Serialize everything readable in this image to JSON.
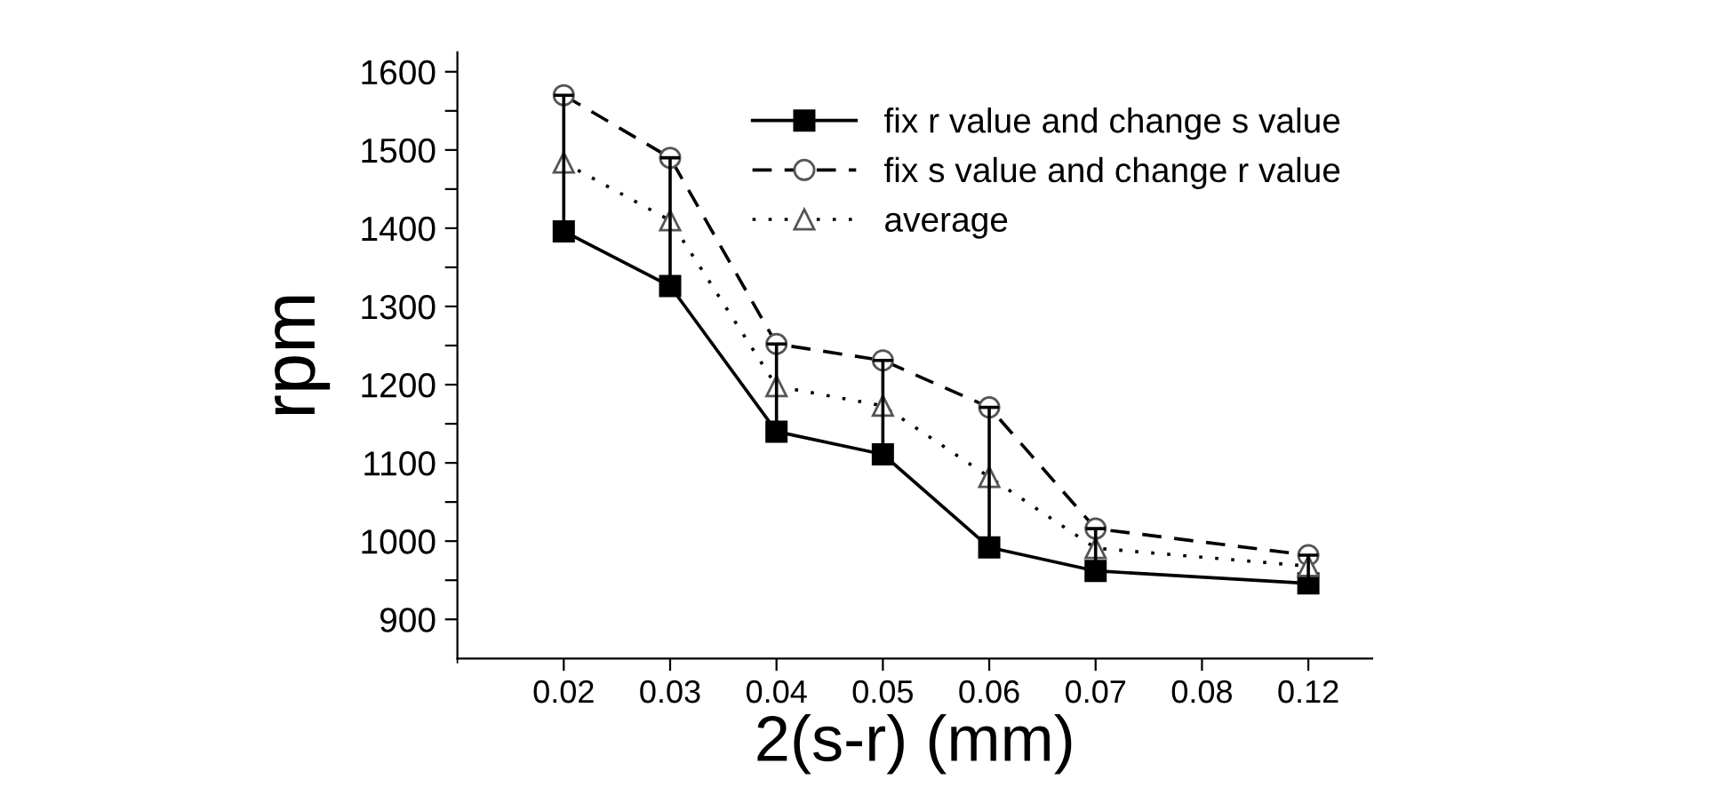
{
  "chart_data": {
    "type": "line",
    "xlabel": "2(s-r) (mm)",
    "ylabel": "rpm",
    "categories": [
      "0.02",
      "0.03",
      "0.04",
      "0.05",
      "0.06",
      "0.07",
      "0.08",
      "0.12"
    ],
    "ylim": [
      850,
      1625
    ],
    "yticks": [
      900,
      {
        "value": 950,
        "label": null
      },
      1000,
      {
        "value": 1050,
        "label": null
      },
      1100,
      {
        "value": 1150,
        "label": null
      },
      1200,
      {
        "value": 1250,
        "label": null
      },
      1300,
      {
        "value": 1350,
        "label": null
      },
      1400,
      {
        "value": 1450,
        "label": null
      },
      1500,
      {
        "value": 1550,
        "label": null
      },
      1600
    ],
    "series": [
      {
        "name": "fix r value and change s value",
        "color": "#000000",
        "marker": "square",
        "line_style": "solid",
        "values": [
          1396,
          1326,
          1140,
          1111,
          992,
          962,
          null,
          946
        ],
        "errors": [
          [
            1396,
            1570
          ],
          [
            1326,
            1490
          ],
          [
            1140,
            1252
          ],
          [
            1111,
            1231
          ],
          [
            992,
            1171
          ],
          [
            962,
            1016
          ],
          null,
          [
            946,
            982
          ]
        ]
      },
      {
        "name": "fix s value and change r value",
        "color": "#000000",
        "marker": "circle",
        "line_style": "dashed",
        "values": [
          1570,
          1490,
          1252,
          1231,
          1171,
          1016,
          null,
          982
        ]
      },
      {
        "name": "average",
        "color": "#000000",
        "marker": "triangle",
        "line_style": "dotted",
        "values": [
          1484,
          1410,
          1198,
          1173,
          1082,
          991,
          null,
          968
        ]
      }
    ],
    "legend": "top right",
    "grid": false
  }
}
